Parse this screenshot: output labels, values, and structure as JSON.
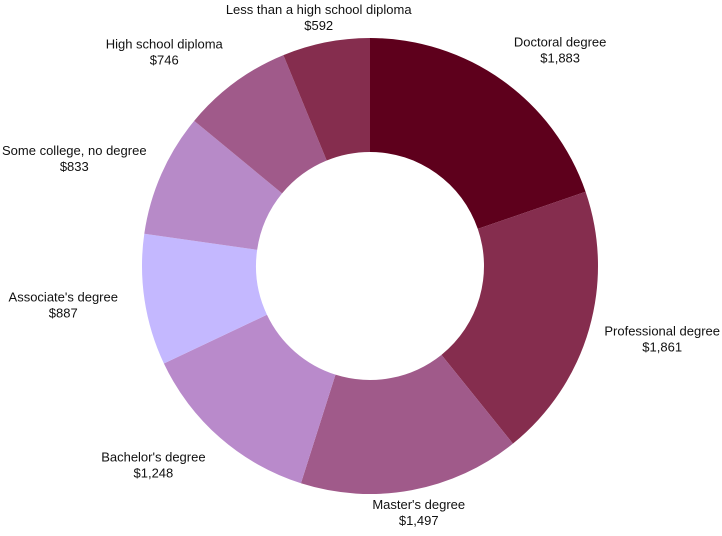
{
  "chart_data": {
    "type": "pie",
    "variant": "donut",
    "title": "",
    "start": "top",
    "direction": "clockwise",
    "legend": "none",
    "slices": [
      {
        "label": "Doctoral degree",
        "value": 1883,
        "value_label": "$1,883",
        "color": "#5e001c"
      },
      {
        "label": "Professional degree",
        "value": 1861,
        "value_label": "$1,861",
        "color": "#852d4e"
      },
      {
        "label": "Master's degree",
        "value": 1497,
        "value_label": "$1,497",
        "color": "#a05a8a"
      },
      {
        "label": "Bachelor's degree",
        "value": 1248,
        "value_label": "$1,248",
        "color": "#b98acb"
      },
      {
        "label": "Associate's degree",
        "value": 887,
        "value_label": "$887",
        "color": "#c4b8ff"
      },
      {
        "label": "Some college, no degree",
        "value": 833,
        "value_label": "$833",
        "color": "#b78ac8"
      },
      {
        "label": "High school diploma",
        "value": 746,
        "value_label": "$746",
        "color": "#a05a8a"
      },
      {
        "label": "Less than a high school diploma",
        "value": 592,
        "value_label": "$592",
        "color": "#852d4e"
      }
    ]
  }
}
